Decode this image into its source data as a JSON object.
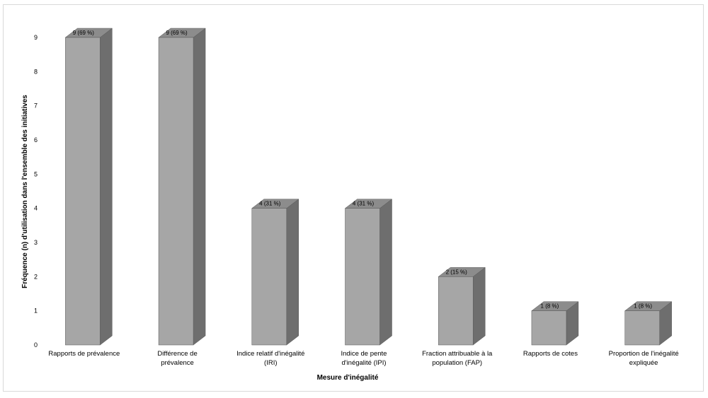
{
  "chart_data": {
    "type": "bar",
    "title": "",
    "xlabel": "Mesure d'inégalité",
    "ylabel": "Fréquence (n) d'utilisation dans l'ensemble des initiatives",
    "ylim": [
      0,
      9
    ],
    "yticks": [
      0,
      1,
      2,
      3,
      4,
      5,
      6,
      7,
      8,
      9
    ],
    "categories": [
      [
        "Rapports de prévalence"
      ],
      [
        "Différence de",
        "prévalence"
      ],
      [
        "Indice relatif d'inégalité",
        "(IRI)"
      ],
      [
        "Indice de pente",
        "d'inégalité (IPI)"
      ],
      [
        "Fraction attribuable à la",
        "population (FAP)"
      ],
      [
        "Rapports de cotes"
      ],
      [
        "Proportion de l'inégalité",
        "expliquée"
      ]
    ],
    "values": [
      9,
      9,
      4,
      4,
      2,
      1,
      1
    ],
    "data_labels": [
      "9 (69 %)",
      "9 (69 %)",
      "4 (31 %)",
      "4 (31 %)",
      "2 (15 %)",
      "1 (8 %)",
      "1 (8 %)"
    ],
    "grid": false,
    "legend": "none",
    "colors": {
      "front": "#a6a6a6",
      "side": "#6e6e6e",
      "top": "#8c8c8c",
      "edge": "#595959"
    }
  }
}
